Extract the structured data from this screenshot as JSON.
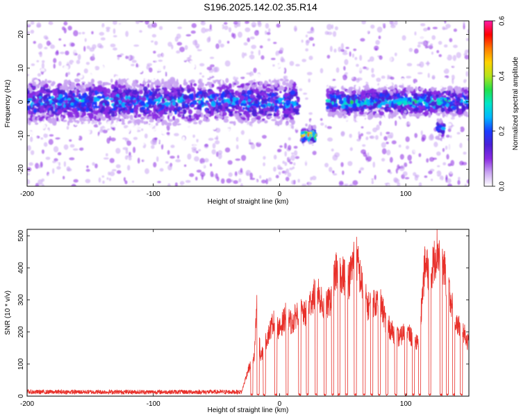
{
  "title": "S196.2025.142.02.35.R14",
  "colors": {
    "snr_line": "#e8302a",
    "colormap": [
      "#ffffff",
      "#c9a4f2",
      "#8a2be2",
      "#4b1fd6",
      "#1a3cff",
      "#00b7ff",
      "#00e6c8",
      "#22e04a",
      "#b4e41c",
      "#ffd200",
      "#ff7a00",
      "#ff0000",
      "#ff1aa8"
    ]
  },
  "chart_data": [
    {
      "type": "heatmap",
      "title": "S196.2025.142.02.35.R14",
      "xlabel": "Height of straight line (km)",
      "ylabel": "Frequency (Hz)",
      "xlim": [
        -200,
        150
      ],
      "ylim": [
        -25,
        24
      ],
      "xticks": [
        -200,
        -100,
        0,
        100
      ],
      "yticks": [
        20,
        10,
        0,
        -10,
        -20
      ],
      "colorbar": {
        "label": "Normalized spectral amplitude",
        "range": [
          0.0,
          0.6
        ],
        "ticks": [
          0.0,
          0.2,
          0.4,
          0.6
        ]
      },
      "features": [
        {
          "x_range": [
            -200,
            15
          ],
          "frequency_center": 0,
          "frequency_halfwidth": 3,
          "peak_amplitude": 0.3
        },
        {
          "x_range": [
            18,
            28
          ],
          "frequency_center": -10,
          "frequency_halfwidth": 1,
          "peak_amplitude": 0.6
        },
        {
          "x_range": [
            38,
            150
          ],
          "frequency_center": 0,
          "frequency_halfwidth": 2,
          "peak_amplitude": 0.35
        },
        {
          "x_range": [
            125,
            130
          ],
          "frequency_center": -8,
          "frequency_halfwidth": 1.5,
          "peak_amplitude": 0.25
        }
      ]
    },
    {
      "type": "line",
      "xlabel": "Height of straight line (km)",
      "ylabel": "SNR (10 * v/v)",
      "xlim": [
        -200,
        150
      ],
      "ylim": [
        0,
        520
      ],
      "xticks": [
        -200,
        -100,
        0,
        100
      ],
      "yticks": [
        0,
        100,
        200,
        300,
        400,
        500
      ],
      "envelope": {
        "x": [
          -200,
          -150,
          -100,
          -50,
          -30,
          -25,
          -20,
          -18,
          -15,
          -10,
          -5,
          0,
          5,
          10,
          15,
          20,
          25,
          30,
          35,
          40,
          45,
          50,
          55,
          60,
          65,
          70,
          75,
          80,
          85,
          90,
          95,
          100,
          105,
          110,
          115,
          120,
          125,
          130,
          135,
          140,
          145,
          150
        ],
        "y": [
          15,
          15,
          15,
          15,
          15,
          90,
          130,
          320,
          130,
          200,
          260,
          230,
          280,
          250,
          300,
          280,
          330,
          370,
          300,
          330,
          440,
          420,
          400,
          500,
          390,
          310,
          330,
          320,
          250,
          220,
          200,
          230,
          200,
          180,
          450,
          430,
          510,
          450,
          350,
          250,
          230,
          180
        ]
      }
    }
  ]
}
